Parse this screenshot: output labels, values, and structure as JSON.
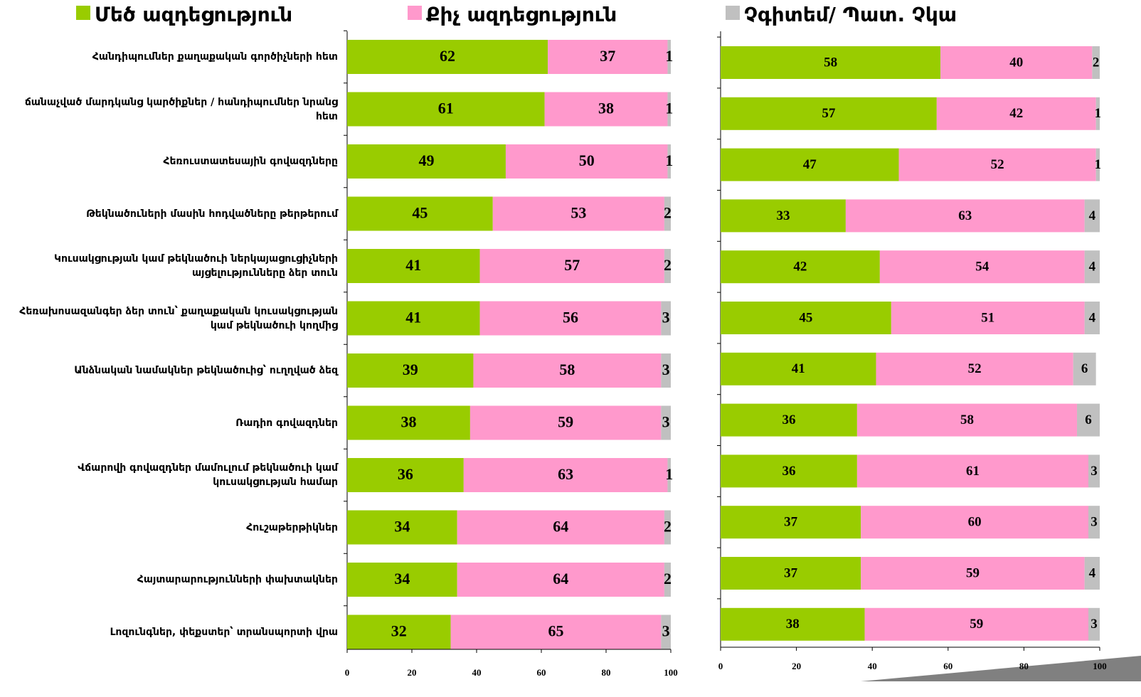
{
  "chart_data": [
    {
      "type": "bar",
      "horizontal": true,
      "stacked": true,
      "categories": [
        "Հանդիպումներ քաղաքական  գործիչների հետ",
        "ճանաչված մարդկանց կարծիքներ / հանդիպումներ նրանց հետ",
        "Հեռուստատեսային գովազդները",
        "Թեկնածուների մասին հոդվածները թերթերում",
        "Կուսակցության կամ թեկնածուի ներկայացուցիչների այցելությունները ձեր տուն",
        "Հեռախոսազանգեր ձեր տուն՝  քաղաքական կուսակցության կամ թեկնածուի կողմից",
        "Անձնական նամակներ թեկնածուից՝ ուղղված ձեզ",
        "Ռադիո գովազդներ",
        "Վճարովի գովազդներ մամուլում  թեկնածուի կամ կուսակցության համար",
        "Հուշաթերթիկներ",
        "Հայտարարությունների փախտակներ",
        "Լոզունգներ, փեքստեր՝ տրանսպորտի վրա"
      ],
      "series": [
        {
          "name": "Մեծ ազդեցություն",
          "color": "#99cc00",
          "values": [
            62,
            61,
            49,
            45,
            41,
            41,
            39,
            38,
            36,
            34,
            34,
            32
          ]
        },
        {
          "name": "Քիչ ազդեցություն",
          "color": "#ff99cc",
          "values": [
            37,
            38,
            50,
            53,
            57,
            56,
            58,
            59,
            63,
            64,
            64,
            65
          ]
        },
        {
          "name": "Չգիտեմ/ Պատ. Չկա",
          "color": "#c0c0c0",
          "values": [
            1,
            1,
            1,
            2,
            2,
            3,
            3,
            3,
            1,
            2,
            2,
            3
          ]
        }
      ],
      "xlim": [
        0,
        100
      ],
      "xticks": [
        0,
        20,
        40,
        60,
        80,
        100
      ]
    },
    {
      "type": "bar",
      "horizontal": true,
      "stacked": true,
      "series": [
        {
          "color": "#99cc00",
          "values": [
            58,
            57,
            47,
            33,
            42,
            45,
            41,
            36,
            36,
            37,
            37,
            38
          ]
        },
        {
          "color": "#ff99cc",
          "values": [
            40,
            42,
            52,
            63,
            54,
            51,
            52,
            58,
            61,
            60,
            59,
            59
          ]
        },
        {
          "color": "#c0c0c0",
          "values": [
            2,
            1,
            1,
            4,
            4,
            4,
            6,
            6,
            3,
            3,
            4,
            3
          ]
        }
      ],
      "xlim": [
        0,
        100
      ],
      "xticks": [
        0,
        20,
        40,
        60,
        80,
        100
      ]
    }
  ]
}
